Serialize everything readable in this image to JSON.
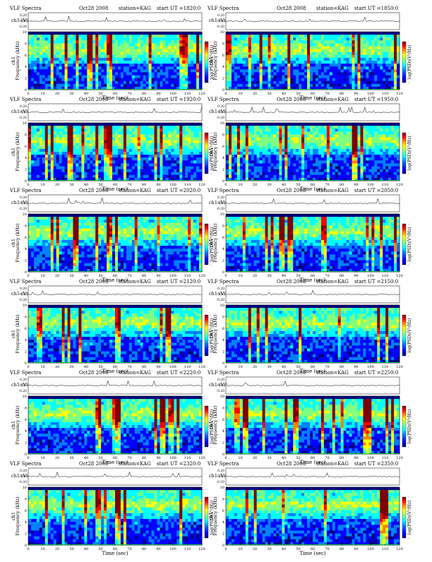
{
  "chart_data": [
    {
      "type": "heatmap",
      "title": "VLF Spectra",
      "date": "Oct28 2008",
      "station": "station=KAG",
      "start": "start  UT  =1820:0",
      "top_ylabel": "ch1 (V)",
      "top_yticks": [
        "0.20",
        "0.00",
        "-0.20"
      ],
      "ylabel": "ch1\nFrequency  (kHz)",
      "yticks": [
        "0",
        "2",
        "4",
        "6",
        "8",
        "10"
      ],
      "ylim": [
        0,
        10
      ],
      "xlabel": "Time  (sec)",
      "xticks": [
        "0",
        "10",
        "20",
        "30",
        "40",
        "50",
        "60",
        "70",
        "80",
        "90",
        "100",
        "110",
        "120"
      ],
      "xlim": [
        0,
        120
      ],
      "colorbar_label": "log(PSD)(V²/Hz)",
      "colorbar_ticks": [
        "-",
        "-",
        "-"
      ]
    },
    {
      "type": "heatmap",
      "title": "VLF Spectra",
      "date": "Oct28 2008",
      "station": "station=KAG",
      "start": "start  UT  =1850:0",
      "top_ylabel": "ch1 (V)",
      "top_yticks": [
        "0.20",
        "0.00",
        "-0.20"
      ],
      "ylabel": "ch1\nFrequency  (kHz)",
      "yticks": [
        "0",
        "2",
        "4",
        "6",
        "8",
        "10"
      ],
      "ylim": [
        0,
        10
      ],
      "xlabel": "Time  (sec)",
      "xticks": [
        "0",
        "10",
        "20",
        "30",
        "40",
        "50",
        "60",
        "70",
        "80",
        "90",
        "100",
        "110",
        "120"
      ],
      "xlim": [
        0,
        120
      ],
      "colorbar_label": "log(PSD)(V²/Hz)",
      "colorbar_ticks": [
        "-",
        "-",
        "-"
      ]
    },
    {
      "type": "heatmap",
      "title": "VLF Spectra",
      "date": "Oct28 2008",
      "station": "station=KAG",
      "start": "start  UT  =1920:0",
      "top_ylabel": "ch1 (V)",
      "top_yticks": [
        "0.20",
        "0.00",
        "-0.20"
      ],
      "ylabel": "ch1\nFrequency  (kHz)",
      "yticks": [
        "0",
        "2",
        "4",
        "6",
        "8",
        "10"
      ],
      "ylim": [
        0,
        10
      ],
      "xlabel": "Time  (sec)",
      "xticks": [
        "0",
        "10",
        "20",
        "30",
        "40",
        "50",
        "60",
        "70",
        "80",
        "90",
        "100",
        "110",
        "120"
      ],
      "xlim": [
        0,
        120
      ],
      "colorbar_label": "log(PSD)(V²/Hz)",
      "colorbar_ticks": [
        "-",
        "-",
        "-"
      ]
    },
    {
      "type": "heatmap",
      "title": "VLF Spectra",
      "date": "Oct28 2008",
      "station": "station=KAG",
      "start": "start  UT  =1950:0",
      "top_ylabel": "ch1 (V)",
      "top_yticks": [
        "0.20",
        "0.00",
        "-0.20"
      ],
      "ylabel": "ch1\nFrequency  (kHz)",
      "yticks": [
        "0",
        "2",
        "4",
        "6",
        "8",
        "10"
      ],
      "ylim": [
        0,
        10
      ],
      "xlabel": "Time  (sec)",
      "xticks": [
        "0",
        "10",
        "20",
        "30",
        "40",
        "50",
        "60",
        "70",
        "80",
        "90",
        "100",
        "110",
        "120"
      ],
      "xlim": [
        0,
        120
      ],
      "colorbar_label": "log(PSD)(V²/Hz)",
      "colorbar_ticks": [
        "-",
        "-",
        "-"
      ]
    },
    {
      "type": "heatmap",
      "title": "VLF Spectra",
      "date": "Oct28 2008",
      "station": "station=KAG",
      "start": "start  UT  =2020:0",
      "top_ylabel": "ch1 (V)",
      "top_yticks": [
        "0.20",
        "0.00",
        "-0.20"
      ],
      "ylabel": "ch1\nFrequency  (kHz)",
      "yticks": [
        "0",
        "2",
        "4",
        "6",
        "8",
        "10"
      ],
      "ylim": [
        0,
        10
      ],
      "xlabel": "Time  (sec)",
      "xticks": [
        "0",
        "10",
        "20",
        "30",
        "40",
        "50",
        "60",
        "70",
        "80",
        "90",
        "100",
        "110",
        "120"
      ],
      "xlim": [
        0,
        120
      ],
      "colorbar_label": "log(PSD)(V²/Hz)",
      "colorbar_ticks": [
        "-",
        "-",
        "-"
      ]
    },
    {
      "type": "heatmap",
      "title": "VLF Spectra",
      "date": "Oct28 2008",
      "station": "station=KAG",
      "start": "start  UT  =2050:0",
      "top_ylabel": "ch1 (V)",
      "top_yticks": [
        "0.20",
        "0.00",
        "-0.20"
      ],
      "ylabel": "ch1\nFrequency  (kHz)",
      "yticks": [
        "0",
        "2",
        "4",
        "6",
        "8",
        "10"
      ],
      "ylim": [
        0,
        10
      ],
      "xlabel": "Time  (sec)",
      "xticks": [
        "0",
        "10",
        "20",
        "30",
        "40",
        "50",
        "60",
        "70",
        "80",
        "90",
        "100",
        "110",
        "120"
      ],
      "xlim": [
        0,
        120
      ],
      "colorbar_label": "log(PSD)(V²/Hz)",
      "colorbar_ticks": [
        "-",
        "-",
        "-"
      ]
    },
    {
      "type": "heatmap",
      "title": "VLF Spectra",
      "date": "Oct28 2008",
      "station": "station=KAG",
      "start": "start  UT  =2120:0",
      "top_ylabel": "ch1 (V)",
      "top_yticks": [
        "0.20",
        "0.00",
        "-0.20"
      ],
      "ylabel": "ch1\nFrequency  (kHz)",
      "yticks": [
        "0",
        "2",
        "4",
        "6",
        "8",
        "10"
      ],
      "ylim": [
        0,
        10
      ],
      "xlabel": "Time  (sec)",
      "xticks": [
        "0",
        "10",
        "20",
        "30",
        "40",
        "50",
        "60",
        "70",
        "80",
        "90",
        "100",
        "110",
        "120"
      ],
      "xlim": [
        0,
        120
      ],
      "colorbar_label": "log(PSD)(V²/Hz)",
      "colorbar_ticks": [
        "-",
        "-",
        "-"
      ]
    },
    {
      "type": "heatmap",
      "title": "VLF Spectra",
      "date": "Oct28 2008",
      "station": "station=KAG",
      "start": "start  UT  =2150:0",
      "top_ylabel": "ch1 (V)",
      "top_yticks": [
        "0.20",
        "0.00",
        "-0.20"
      ],
      "ylabel": "ch1\nFrequency  (kHz)",
      "yticks": [
        "0",
        "2",
        "4",
        "6",
        "8",
        "10"
      ],
      "ylim": [
        0,
        10
      ],
      "xlabel": "Time  (sec)",
      "xticks": [
        "0",
        "10",
        "20",
        "30",
        "40",
        "50",
        "60",
        "70",
        "80",
        "90",
        "100",
        "110",
        "120"
      ],
      "xlim": [
        0,
        120
      ],
      "colorbar_label": "log(PSD)(V²/Hz)",
      "colorbar_ticks": [
        "-",
        "-",
        "-"
      ]
    },
    {
      "type": "heatmap",
      "title": "VLF Spectra",
      "date": "Oct28 2008",
      "station": "station=KAG",
      "start": "start  UT  =2220:0",
      "top_ylabel": "ch1 (V)",
      "top_yticks": [
        "0.20",
        "0.00",
        "-0.20"
      ],
      "ylabel": "ch1\nFrequency  (kHz)",
      "yticks": [
        "0",
        "2",
        "4",
        "6",
        "8",
        "10"
      ],
      "ylim": [
        0,
        10
      ],
      "xlabel": "Time  (sec)",
      "xticks": [
        "0",
        "10",
        "20",
        "30",
        "40",
        "50",
        "60",
        "70",
        "80",
        "90",
        "100",
        "110",
        "120"
      ],
      "xlim": [
        0,
        120
      ],
      "colorbar_label": "log(PSD)(V²/Hz)",
      "colorbar_ticks": [
        "-",
        "-",
        "-"
      ]
    },
    {
      "type": "heatmap",
      "title": "VLF Spectra",
      "date": "Oct28 2008",
      "station": "station=KAG",
      "start": "start  UT  =2250:0",
      "top_ylabel": "ch1 (V)",
      "top_yticks": [
        "0.20",
        "0.00",
        "-0.20"
      ],
      "ylabel": "ch1\nFrequency  (kHz)",
      "yticks": [
        "0",
        "2",
        "4",
        "6",
        "8",
        "10"
      ],
      "ylim": [
        0,
        10
      ],
      "xlabel": "Time  (sec)",
      "xticks": [
        "0",
        "10",
        "20",
        "30",
        "40",
        "50",
        "60",
        "70",
        "80",
        "90",
        "100",
        "110",
        "120"
      ],
      "xlim": [
        0,
        120
      ],
      "colorbar_label": "log(PSD)(V²/Hz)",
      "colorbar_ticks": [
        "-",
        "-",
        "-"
      ]
    },
    {
      "type": "heatmap",
      "title": "VLF Spectra",
      "date": "Oct28 2008",
      "station": "station=KAG",
      "start": "start  UT  =2320:0",
      "top_ylabel": "ch1 (V)",
      "top_yticks": [
        "0.20",
        "0.00",
        "-0.20"
      ],
      "ylabel": "ch1\nFrequency  (kHz)",
      "yticks": [
        "0",
        "2",
        "4",
        "6",
        "8",
        "10"
      ],
      "ylim": [
        0,
        10
      ],
      "xlabel": "Time  (sec)",
      "xticks": [
        "0",
        "10",
        "20",
        "30",
        "40",
        "50",
        "60",
        "70",
        "80",
        "90",
        "100",
        "110",
        "120"
      ],
      "xlim": [
        0,
        120
      ],
      "colorbar_label": "log(PSD)(V²/Hz)",
      "colorbar_ticks": [
        "-",
        "-",
        "-"
      ]
    },
    {
      "type": "heatmap",
      "title": "VLF Spectra",
      "date": "Oct28 2008",
      "station": "station=KAG",
      "start": "start  UT  =2350:0",
      "top_ylabel": "ch1 (V)",
      "top_yticks": [
        "0.20",
        "0.00",
        "-0.20"
      ],
      "ylabel": "ch1\nFrequency  (kHz)",
      "yticks": [
        "0",
        "2",
        "4",
        "6",
        "8",
        "10"
      ],
      "ylim": [
        0,
        10
      ],
      "xlabel": "Time  (sec)",
      "xticks": [
        "0",
        "10",
        "20",
        "30",
        "40",
        "50",
        "60",
        "70",
        "80",
        "90",
        "100",
        "110",
        "120"
      ],
      "xlim": [
        0,
        120
      ],
      "colorbar_label": "log(PSD)(V²/Hz)",
      "colorbar_ticks": [
        "-",
        "-",
        "-"
      ]
    }
  ],
  "colorscale": [
    "#00007f",
    "#0000ff",
    "#0080ff",
    "#00ffff",
    "#80ff80",
    "#ffff00",
    "#ff8000",
    "#ff0000",
    "#7f0000"
  ]
}
